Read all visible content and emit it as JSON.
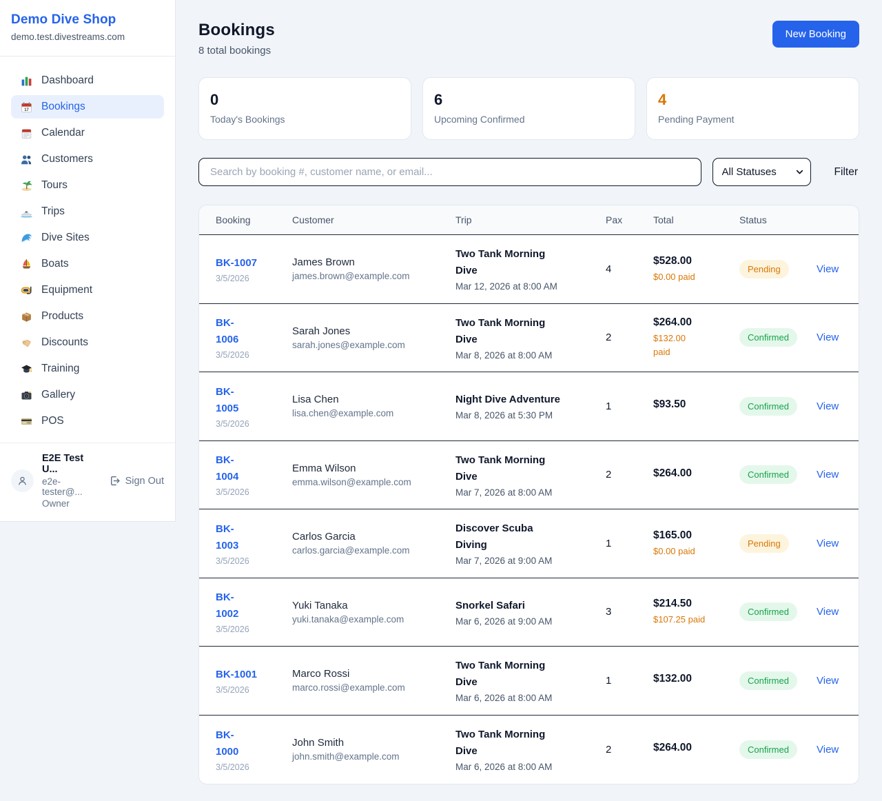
{
  "brand": {
    "name": "Demo Dive Shop",
    "domain": "demo.test.divestreams.com"
  },
  "sidebar": {
    "items": [
      {
        "icon": "dashboard",
        "label": "Dashboard",
        "active": false
      },
      {
        "icon": "bookings",
        "label": "Bookings",
        "active": true
      },
      {
        "icon": "calendar",
        "label": "Calendar",
        "active": false
      },
      {
        "icon": "customers",
        "label": "Customers",
        "active": false
      },
      {
        "icon": "tours",
        "label": "Tours",
        "active": false
      },
      {
        "icon": "trips",
        "label": "Trips",
        "active": false
      },
      {
        "icon": "dive-sites",
        "label": "Dive Sites",
        "active": false
      },
      {
        "icon": "boats",
        "label": "Boats",
        "active": false
      },
      {
        "icon": "equipment",
        "label": "Equipment",
        "active": false
      },
      {
        "icon": "products",
        "label": "Products",
        "active": false
      },
      {
        "icon": "discounts",
        "label": "Discounts",
        "active": false
      },
      {
        "icon": "training",
        "label": "Training",
        "active": false
      },
      {
        "icon": "gallery",
        "label": "Gallery",
        "active": false
      },
      {
        "icon": "pos",
        "label": "POS",
        "active": false
      }
    ]
  },
  "user": {
    "name": "E2E Test U...",
    "email": "e2e-tester@...",
    "role": "Owner",
    "sign_out_label": "Sign Out"
  },
  "header": {
    "title": "Bookings",
    "subtitle": "8 total bookings",
    "new_booking_label": "New Booking"
  },
  "stats": [
    {
      "value": "0",
      "label": "Today's Bookings",
      "accent": "dark"
    },
    {
      "value": "6",
      "label": "Upcoming Confirmed",
      "accent": "dark"
    },
    {
      "value": "4",
      "label": "Pending Payment",
      "accent": "orange"
    }
  ],
  "filters": {
    "search_placeholder": "Search by booking #, customer name, or email...",
    "status_selected": "All Statuses",
    "filter_label": "Filter"
  },
  "table": {
    "columns": [
      "Booking",
      "Customer",
      "Trip",
      "Pax",
      "Total",
      "Status"
    ],
    "view_label": "View",
    "rows": [
      {
        "booking_id": "BK-1007",
        "booking_date": "3/5/2026",
        "customer_name": "James Brown",
        "customer_email": "james.brown@example.com",
        "trip_name": "Two Tank Morning\nDive",
        "trip_datetime": "Mar 12, 2026 at 8:00 AM",
        "pax": "4",
        "total": "$528.00",
        "paid": "$0.00 paid",
        "status": "Pending"
      },
      {
        "booking_id": "BK-\n1006",
        "booking_date": "3/5/2026",
        "customer_name": "Sarah Jones",
        "customer_email": "sarah.jones@example.com",
        "trip_name": "Two Tank Morning\nDive",
        "trip_datetime": "Mar 8, 2026 at 8:00 AM",
        "pax": "2",
        "total": "$264.00",
        "paid": "$132.00\npaid",
        "status": "Confirmed"
      },
      {
        "booking_id": "BK-\n1005",
        "booking_date": "3/5/2026",
        "customer_name": "Lisa Chen",
        "customer_email": "lisa.chen@example.com",
        "trip_name": "Night Dive Adventure",
        "trip_datetime": "Mar 8, 2026 at 5:30 PM",
        "pax": "1",
        "total": "$93.50",
        "paid": null,
        "status": "Confirmed"
      },
      {
        "booking_id": "BK-\n1004",
        "booking_date": "3/5/2026",
        "customer_name": "Emma Wilson",
        "customer_email": "emma.wilson@example.com",
        "trip_name": "Two Tank Morning\nDive",
        "trip_datetime": "Mar 7, 2026 at 8:00 AM",
        "pax": "2",
        "total": "$264.00",
        "paid": null,
        "status": "Confirmed"
      },
      {
        "booking_id": "BK-\n1003",
        "booking_date": "3/5/2026",
        "customer_name": "Carlos Garcia",
        "customer_email": "carlos.garcia@example.com",
        "trip_name": "Discover Scuba\nDiving",
        "trip_datetime": "Mar 7, 2026 at 9:00 AM",
        "pax": "1",
        "total": "$165.00",
        "paid": "$0.00 paid",
        "status": "Pending"
      },
      {
        "booking_id": "BK-\n1002",
        "booking_date": "3/5/2026",
        "customer_name": "Yuki Tanaka",
        "customer_email": "yuki.tanaka@example.com",
        "trip_name": "Snorkel Safari",
        "trip_datetime": "Mar 6, 2026 at 9:00 AM",
        "pax": "3",
        "total": "$214.50",
        "paid": "$107.25 paid",
        "status": "Confirmed"
      },
      {
        "booking_id": "BK-1001",
        "booking_date": "3/5/2026",
        "customer_name": "Marco Rossi",
        "customer_email": "marco.rossi@example.com",
        "trip_name": "Two Tank Morning\nDive",
        "trip_datetime": "Mar 6, 2026 at 8:00 AM",
        "pax": "1",
        "total": "$132.00",
        "paid": null,
        "status": "Confirmed"
      },
      {
        "booking_id": "BK-\n1000",
        "booking_date": "3/5/2026",
        "customer_name": "John Smith",
        "customer_email": "john.smith@example.com",
        "trip_name": "Two Tank Morning\nDive",
        "trip_datetime": "Mar 6, 2026 at 8:00 AM",
        "pax": "2",
        "total": "$264.00",
        "paid": null,
        "status": "Confirmed"
      }
    ]
  },
  "colors": {
    "accent_blue": "#2563eb",
    "orange": "#d97706",
    "green": "#16a34a",
    "pending_bg": "#fdf4dd",
    "confirmed_bg": "#e4f7eb"
  }
}
